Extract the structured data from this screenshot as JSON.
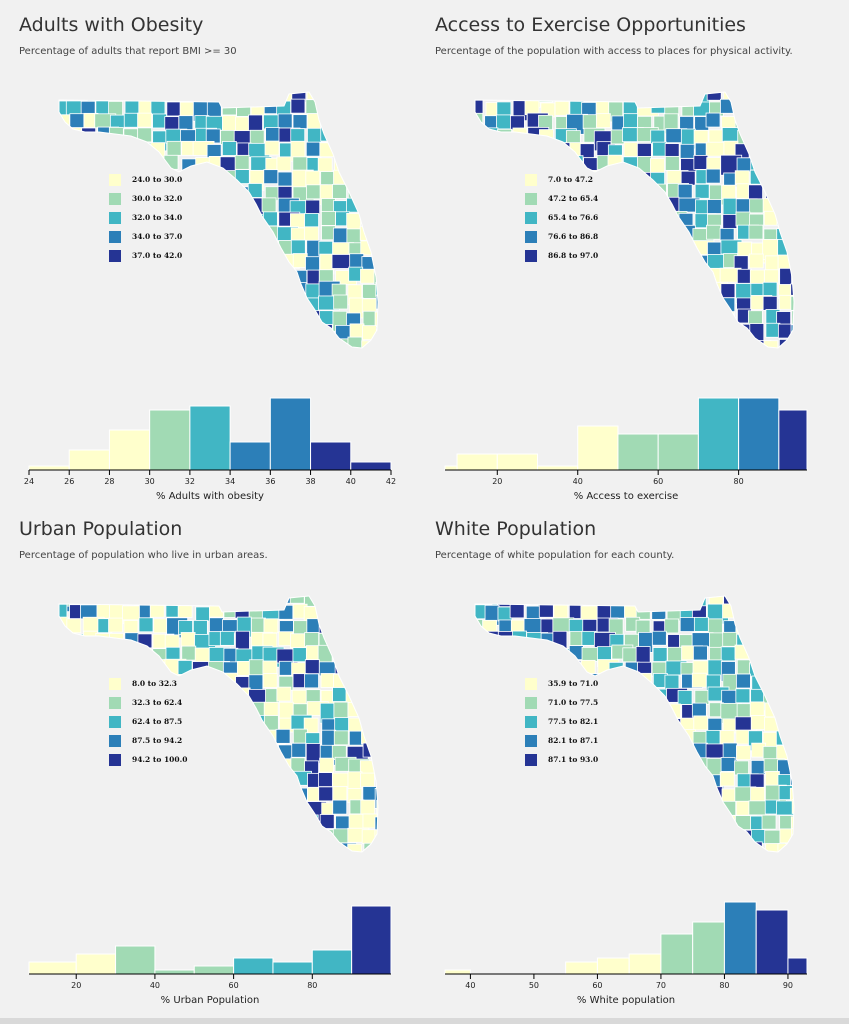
{
  "colors": [
    "#ffffcc",
    "#a1dab4",
    "#41b6c4",
    "#2c7fb8",
    "#253494"
  ],
  "panels": [
    {
      "id": "obesity",
      "title": "Adults with Obesity",
      "subtitle": "Percentage of adults that report BMI >= 30",
      "legend": [
        "24.0 to 30.0",
        "30.0 to 32.0",
        "32.0 to 34.0",
        "34.0 to 37.0",
        "37.0 to 42.0"
      ],
      "map_seed": 3,
      "map_bias": [
        0.22,
        0.22,
        0.22,
        0.18,
        0.16
      ]
    },
    {
      "id": "exercise",
      "title": "Access to Exercise Opportunities",
      "subtitle": "Percentage of the population with access to places for physical activity.",
      "legend": [
        "7.0 to 47.2",
        "47.2 to 65.4",
        "65.4 to 76.6",
        "76.6 to 86.8",
        "86.8 to 97.0"
      ],
      "map_seed": 11,
      "map_bias": [
        0.24,
        0.18,
        0.2,
        0.18,
        0.2
      ]
    },
    {
      "id": "urban",
      "title": "Urban Population",
      "subtitle": "Percentage of population who live in urban areas.",
      "legend": [
        "8.0 to 32.3",
        "32.3 to 62.4",
        "62.4 to 87.5",
        "87.5 to 94.2",
        "94.2 to 100.0"
      ],
      "map_seed": 23,
      "map_bias": [
        0.3,
        0.2,
        0.18,
        0.2,
        0.12
      ]
    },
    {
      "id": "white",
      "title": "White Population",
      "subtitle": "Percentage of white population for each county.",
      "legend": [
        "35.9 to 71.0",
        "71.0 to 77.5",
        "77.5 to 82.1",
        "82.1 to 87.1",
        "87.1 to 93.0"
      ],
      "map_seed": 37,
      "map_bias": [
        0.24,
        0.2,
        0.2,
        0.2,
        0.16
      ]
    }
  ],
  "chart_data": [
    {
      "type": "bar",
      "title": "",
      "xlabel": "% Adults with obesity",
      "xlim": [
        24,
        42
      ],
      "xticks": [
        24,
        26,
        28,
        30,
        32,
        34,
        36,
        38,
        40,
        42
      ],
      "ylim": [
        0,
        18
      ],
      "bins": [
        {
          "x0": 24,
          "x1": 26,
          "count": 1,
          "color_class": 0
        },
        {
          "x0": 26,
          "x1": 28,
          "count": 5,
          "color_class": 0
        },
        {
          "x0": 28,
          "x1": 30,
          "count": 10,
          "color_class": 0
        },
        {
          "x0": 30,
          "x1": 32,
          "count": 15,
          "color_class": 1
        },
        {
          "x0": 32,
          "x1": 34,
          "count": 16,
          "color_class": 2
        },
        {
          "x0": 34,
          "x1": 36,
          "count": 7,
          "color_class": 3
        },
        {
          "x0": 36,
          "x1": 38,
          "count": 18,
          "color_class": 3
        },
        {
          "x0": 38,
          "x1": 40,
          "count": 7,
          "color_class": 4
        },
        {
          "x0": 40,
          "x1": 42,
          "count": 2,
          "color_class": 4
        }
      ]
    },
    {
      "type": "bar",
      "title": "",
      "xlabel": "% Access to exercise",
      "xlim": [
        7,
        97
      ],
      "xticks": [
        20,
        40,
        60,
        80
      ],
      "ylim": [
        0,
        18
      ],
      "bins": [
        {
          "x0": 7,
          "x1": 10,
          "count": 1,
          "color_class": 0
        },
        {
          "x0": 10,
          "x1": 20,
          "count": 4,
          "color_class": 0
        },
        {
          "x0": 20,
          "x1": 30,
          "count": 4,
          "color_class": 0
        },
        {
          "x0": 30,
          "x1": 40,
          "count": 1,
          "color_class": 0
        },
        {
          "x0": 40,
          "x1": 50,
          "count": 11,
          "color_class": 0
        },
        {
          "x0": 50,
          "x1": 60,
          "count": 9,
          "color_class": 1
        },
        {
          "x0": 60,
          "x1": 70,
          "count": 9,
          "color_class": 1
        },
        {
          "x0": 70,
          "x1": 80,
          "count": 18,
          "color_class": 2
        },
        {
          "x0": 80,
          "x1": 90,
          "count": 18,
          "color_class": 3
        },
        {
          "x0": 90,
          "x1": 97,
          "count": 15,
          "color_class": 4
        }
      ]
    },
    {
      "type": "bar",
      "title": "",
      "xlabel": "% Urban Population",
      "xlim": [
        8,
        100
      ],
      "xticks": [
        20,
        40,
        60,
        80
      ],
      "ylim": [
        0,
        18
      ],
      "bins": [
        {
          "x0": 8,
          "x1": 20,
          "count": 3,
          "color_class": 0
        },
        {
          "x0": 20,
          "x1": 30,
          "count": 5,
          "color_class": 0
        },
        {
          "x0": 30,
          "x1": 40,
          "count": 7,
          "color_class": 1
        },
        {
          "x0": 40,
          "x1": 50,
          "count": 1,
          "color_class": 1
        },
        {
          "x0": 50,
          "x1": 60,
          "count": 2,
          "color_class": 1
        },
        {
          "x0": 60,
          "x1": 70,
          "count": 4,
          "color_class": 2
        },
        {
          "x0": 70,
          "x1": 80,
          "count": 3,
          "color_class": 2
        },
        {
          "x0": 80,
          "x1": 90,
          "count": 6,
          "color_class": 2
        },
        {
          "x0": 90,
          "x1": 100,
          "count": 17,
          "color_class": 4
        }
      ]
    },
    {
      "type": "bar",
      "title": "",
      "xlabel": "% White population",
      "xlim": [
        36,
        93
      ],
      "xticks": [
        40,
        50,
        60,
        70,
        80,
        90
      ],
      "ylim": [
        0,
        18
      ],
      "bins": [
        {
          "x0": 36,
          "x1": 40,
          "count": 1,
          "color_class": 0
        },
        {
          "x0": 40,
          "x1": 55,
          "count": 0,
          "color_class": 0
        },
        {
          "x0": 55,
          "x1": 60,
          "count": 3,
          "color_class": 0
        },
        {
          "x0": 60,
          "x1": 65,
          "count": 4,
          "color_class": 0
        },
        {
          "x0": 65,
          "x1": 70,
          "count": 5,
          "color_class": 0
        },
        {
          "x0": 70,
          "x1": 75,
          "count": 10,
          "color_class": 1
        },
        {
          "x0": 75,
          "x1": 80,
          "count": 13,
          "color_class": 1
        },
        {
          "x0": 80,
          "x1": 85,
          "count": 18,
          "color_class": 3
        },
        {
          "x0": 85,
          "x1": 90,
          "count": 16,
          "color_class": 4
        },
        {
          "x0": 90,
          "x1": 93,
          "count": 4,
          "color_class": 4
        }
      ]
    }
  ]
}
